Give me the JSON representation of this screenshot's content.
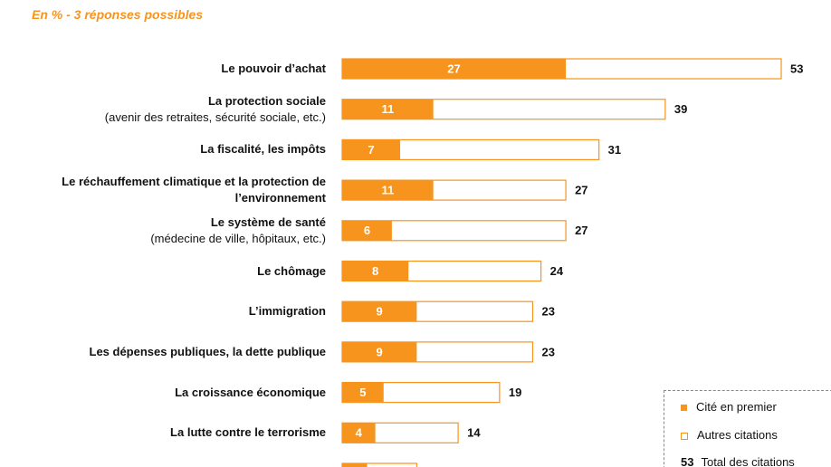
{
  "chart_data": {
    "type": "bar",
    "orientation": "horizontal",
    "subtitle": "En % - 3 réponses possibles",
    "categories": [
      "Le pouvoir d’achat",
      "La protection sociale",
      "La fiscalité, les impôts",
      "Le réchauffement climatique et la protection de l’environnement",
      "Le système de santé",
      "Le chômage",
      "L’immigration",
      "Les dépenses publiques, la dette publique",
      "La croissance économique",
      "La lutte contre le terrorisme",
      null
    ],
    "category_notes": [
      null,
      "(avenir des retraites, sécurité sociale, etc.)",
      null,
      null,
      "(médecine de ville, hôpitaux, etc.)",
      null,
      null,
      null,
      null,
      null,
      null
    ],
    "series": [
      {
        "name": "Cité en premier",
        "color": "#f7941d",
        "values": [
          27,
          11,
          7,
          11,
          6,
          8,
          9,
          9,
          5,
          4,
          3
        ]
      },
      {
        "name": "Autres citations",
        "color": "#ffffff",
        "values": [
          53,
          39,
          31,
          27,
          27,
          24,
          23,
          23,
          19,
          14,
          9
        ]
      }
    ],
    "total_legend": {
      "sample": "53",
      "label": "Total des citations"
    },
    "xlim": [
      0,
      53
    ]
  }
}
